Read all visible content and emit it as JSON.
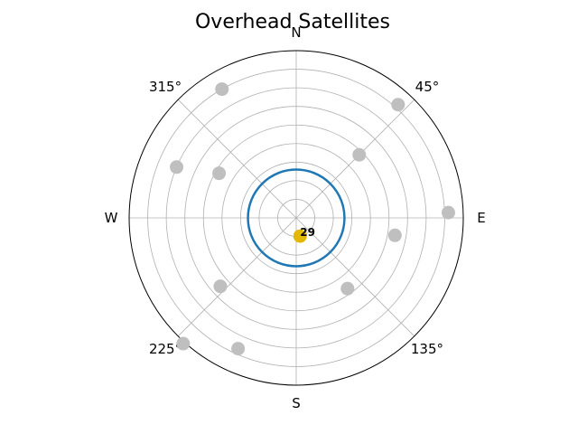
{
  "chart_data": {
    "type": "scatter",
    "projection": "polar",
    "title": "Overhead Satellites",
    "theta_zero_location": "N",
    "theta_direction": "clockwise",
    "theta_tick_labels": [
      {
        "angle": 0,
        "label": "N"
      },
      {
        "angle": 45,
        "label": "45°"
      },
      {
        "angle": 90,
        "label": "E"
      },
      {
        "angle": 135,
        "label": "135°"
      },
      {
        "angle": 180,
        "label": "S"
      },
      {
        "angle": 225,
        "label": "225°"
      },
      {
        "angle": 270,
        "label": "W"
      },
      {
        "angle": 315,
        "label": "315°"
      }
    ],
    "r_grid_values": [
      10,
      20,
      30,
      40,
      50,
      60,
      70,
      80,
      90
    ],
    "r_tick_labels_visible": false,
    "r_max": 90,
    "grid": true,
    "circle": {
      "r": 26,
      "color": "#1f77b4"
    },
    "points": [
      {
        "azimuth": 330,
        "r": 80,
        "color": "#bfbfbf",
        "label": ""
      },
      {
        "azimuth": 293,
        "r": 70,
        "color": "#bfbfbf",
        "label": ""
      },
      {
        "azimuth": 300,
        "r": 48,
        "color": "#bfbfbf",
        "label": ""
      },
      {
        "azimuth": 45,
        "r": 48,
        "color": "#bfbfbf",
        "label": ""
      },
      {
        "azimuth": 42,
        "r": 82,
        "color": "#bfbfbf",
        "label": ""
      },
      {
        "azimuth": 88,
        "r": 82,
        "color": "#bfbfbf",
        "label": ""
      },
      {
        "azimuth": 100,
        "r": 54,
        "color": "#bfbfbf",
        "label": ""
      },
      {
        "azimuth": 144,
        "r": 47,
        "color": "#bfbfbf",
        "label": ""
      },
      {
        "azimuth": 228,
        "r": 55,
        "color": "#bfbfbf",
        "label": ""
      },
      {
        "azimuth": 222,
        "r": 91,
        "color": "#bfbfbf",
        "label": ""
      },
      {
        "azimuth": 204,
        "r": 77,
        "color": "#bfbfbf",
        "label": ""
      },
      {
        "azimuth": 168,
        "r": 10,
        "color": "#e3b800",
        "label": "29"
      }
    ]
  }
}
